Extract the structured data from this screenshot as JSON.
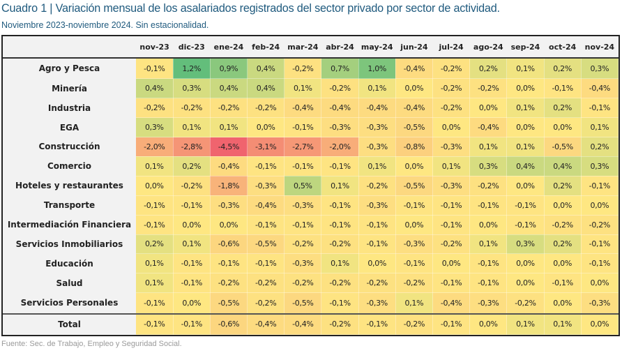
{
  "title": "Cuadro 1 | Variación mensual de los asalariados registrados del sector privado por sector de actividad.",
  "subtitle": "Noviembre 2023-noviembre 2024. Sin estacionalidad.",
  "source": "Fuente: Sec. de Trabajo, Empleo y Seguridad Social.",
  "colors": {
    "title": "#1f5a7e",
    "scale_min": "#f0646e",
    "scale_mid": "#fee782",
    "scale_max": "#63be7b"
  },
  "chart_data": {
    "type": "heatmap",
    "title": "Cuadro 1 | Variación mensual de los asalariados registrados del sector privado por sector de actividad.",
    "subtitle": "Noviembre 2023-noviembre 2024. Sin estacionalidad.",
    "unit": "%",
    "columns": [
      "nov-23",
      "dic-23",
      "ene-24",
      "feb-24",
      "mar-24",
      "abr-24",
      "may-24",
      "jun-24",
      "jul-24",
      "ago-24",
      "sep-24",
      "oct-24",
      "nov-24"
    ],
    "rows": [
      {
        "label": "Agro y Pesca",
        "values": [
          "-0,1%",
          "1,2%",
          "0,9%",
          "0,4%",
          "-0,2%",
          "0,7%",
          "1,0%",
          "-0,4%",
          "-0,2%",
          "0,2%",
          "0,1%",
          "0,2%",
          "0,3%"
        ]
      },
      {
        "label": "Minería",
        "values": [
          "0,4%",
          "0,3%",
          "0,4%",
          "0,4%",
          "0,1%",
          "-0,2%",
          "0,1%",
          "0,0%",
          "-0,2%",
          "-0,2%",
          "0,0%",
          "-0,1%",
          "-0,4%"
        ]
      },
      {
        "label": "Industria",
        "values": [
          "-0,2%",
          "-0,2%",
          "-0,2%",
          "-0,2%",
          "-0,4%",
          "-0,4%",
          "-0,4%",
          "-0,4%",
          "-0,2%",
          "0,0%",
          "0,1%",
          "0,2%",
          "-0,1%"
        ]
      },
      {
        "label": "EGA",
        "values": [
          "0,3%",
          "0,1%",
          "0,1%",
          "0,0%",
          "-0,1%",
          "-0,3%",
          "-0,3%",
          "-0,5%",
          "0,0%",
          "-0,4%",
          "0,0%",
          "0,0%",
          "0,1%"
        ]
      },
      {
        "label": "Construcción",
        "values": [
          "-2,0%",
          "-2,8%",
          "-4,5%",
          "-3,1%",
          "-2,7%",
          "-2,0%",
          "-0,3%",
          "-0,8%",
          "-0,3%",
          "0,1%",
          "0,1%",
          "-0,5%",
          "0,2%"
        ]
      },
      {
        "label": "Comercio",
        "values": [
          "0,1%",
          "0,2%",
          "-0,4%",
          "-0,1%",
          "-0,1%",
          "-0,1%",
          "0,1%",
          "0,0%",
          "0,1%",
          "0,3%",
          "0,4%",
          "0,4%",
          "0,3%"
        ]
      },
      {
        "label": "Hoteles y restaurantes",
        "values": [
          "0,0%",
          "-0,2%",
          "-1,8%",
          "-0,3%",
          "0,5%",
          "0,1%",
          "-0,2%",
          "-0,5%",
          "-0,3%",
          "-0,2%",
          "0,0%",
          "0,2%",
          "-0,1%"
        ]
      },
      {
        "label": "Transporte",
        "values": [
          "-0,1%",
          "-0,1%",
          "-0,3%",
          "-0,4%",
          "-0,3%",
          "-0,1%",
          "-0,3%",
          "-0,1%",
          "-0,1%",
          "-0,1%",
          "-0,1%",
          "0,0%",
          "0,0%"
        ]
      },
      {
        "label": "Intermediación Financiera",
        "values": [
          "-0,1%",
          "0,0%",
          "0,0%",
          "-0,1%",
          "-0,1%",
          "-0,1%",
          "-0,1%",
          "0,0%",
          "-0,1%",
          "0,0%",
          "-0,1%",
          "-0,2%",
          "-0,2%"
        ]
      },
      {
        "label": "Servicios Inmobiliarios",
        "values": [
          "0,2%",
          "0,1%",
          "-0,6%",
          "-0,5%",
          "-0,2%",
          "-0,2%",
          "-0,1%",
          "-0,3%",
          "-0,2%",
          "0,1%",
          "0,3%",
          "0,2%",
          "-0,1%"
        ]
      },
      {
        "label": "Educación",
        "values": [
          "0,1%",
          "-0,1%",
          "-0,1%",
          "-0,1%",
          "-0,3%",
          "0,1%",
          "0,0%",
          "-0,1%",
          "0,0%",
          "-0,1%",
          "0,0%",
          "0,0%",
          "-0,1%"
        ]
      },
      {
        "label": "Salud",
        "values": [
          "0,1%",
          "-0,1%",
          "-0,2%",
          "-0,2%",
          "-0,2%",
          "-0,2%",
          "-0,2%",
          "-0,2%",
          "-0,1%",
          "-0,1%",
          "0,0%",
          "-0,1%",
          "0,0%"
        ]
      },
      {
        "label": "Servicios Personales",
        "values": [
          "-0,1%",
          "0,0%",
          "-0,5%",
          "-0,2%",
          "-0,5%",
          "-0,1%",
          "-0,3%",
          "0,1%",
          "-0,4%",
          "-0,3%",
          "-0,2%",
          "0,0%",
          "-0,3%"
        ]
      }
    ],
    "total": {
      "label": "Total",
      "values": [
        "-0,1%",
        "-0,1%",
        "-0,6%",
        "-0,4%",
        "-0,4%",
        "-0,2%",
        "-0,1%",
        "-0,2%",
        "-0,1%",
        "0,0%",
        "0,1%",
        "0,1%",
        "0,0%"
      ]
    },
    "color_scale": {
      "min": -4.5,
      "mid": 0,
      "max": 1.2
    }
  }
}
